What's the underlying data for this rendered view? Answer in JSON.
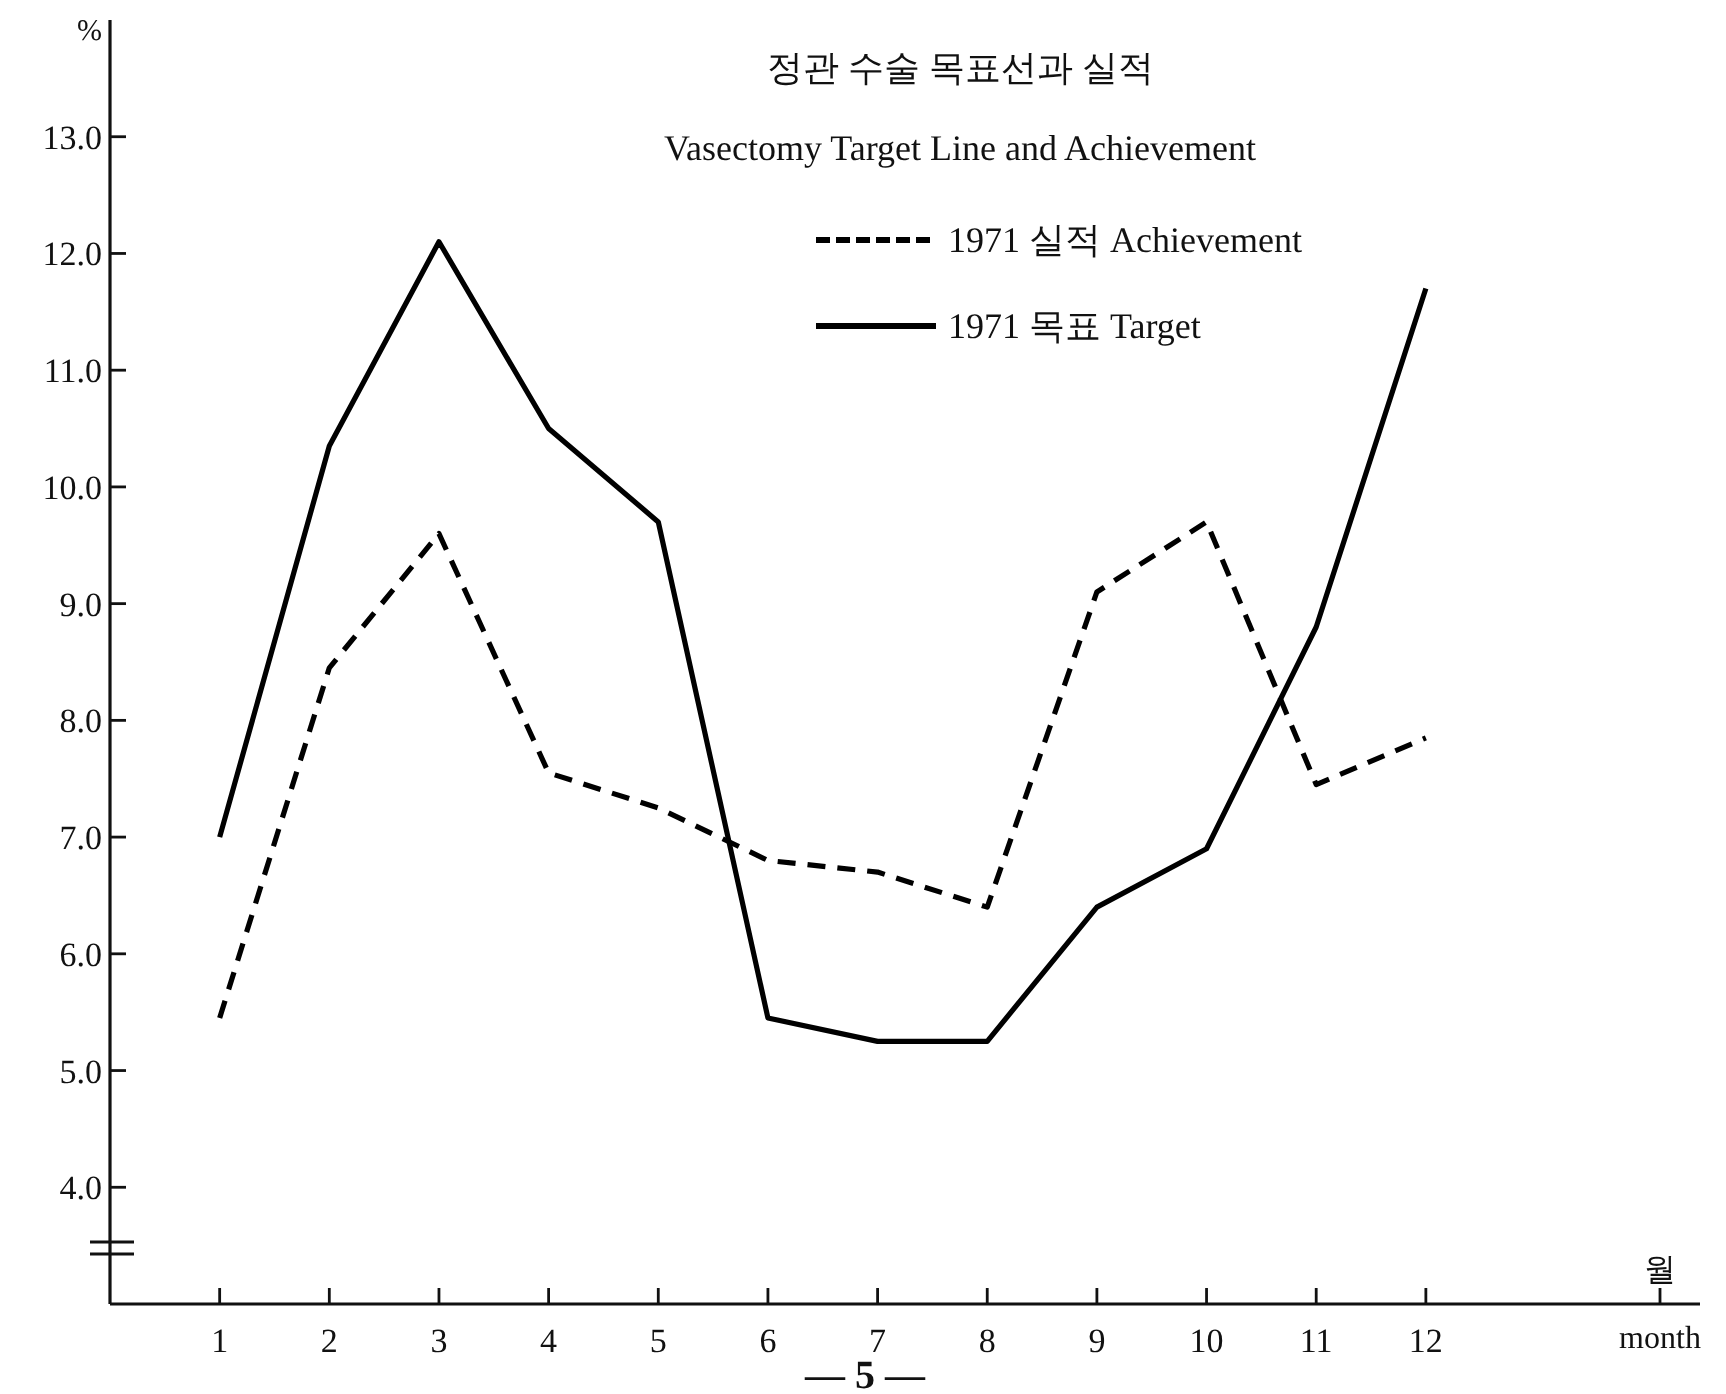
{
  "chart_data": {
    "type": "line",
    "title": "정관 수술 목표선과 실적",
    "subtitle": "Vasectomy Target Line and Achievement",
    "ylabel": "%",
    "xlabel": "월\nmonth",
    "x": [
      1,
      2,
      3,
      4,
      5,
      6,
      7,
      8,
      9,
      10,
      11,
      12
    ],
    "xlim": [
      0,
      14.5
    ],
    "xticks": [
      1,
      2,
      3,
      4,
      5,
      6,
      7,
      8,
      9,
      10,
      11,
      12
    ],
    "ylim": [
      3.0,
      14.0
    ],
    "yticks": [
      {
        "value": 4,
        "label": "4.0"
      },
      {
        "value": 5,
        "label": "5.0"
      },
      {
        "value": 6,
        "label": "6.0"
      },
      {
        "value": 7,
        "label": "7.0"
      },
      {
        "value": 8,
        "label": "8.0"
      },
      {
        "value": 9,
        "label": "9.0"
      },
      {
        "value": 10,
        "label": "10.0"
      },
      {
        "value": 11,
        "label": "11.0"
      },
      {
        "value": 12,
        "label": "12.0"
      },
      {
        "value": 13,
        "label": "13.0"
      }
    ],
    "series": [
      {
        "name": "1971 실적 Achievement",
        "color": "#000000",
        "line_style": "dashed",
        "values": [
          5.45,
          8.45,
          9.6,
          7.55,
          7.25,
          6.8,
          6.7,
          6.4,
          9.1,
          9.7,
          7.45,
          7.85
        ]
      },
      {
        "name": "1971 목표 Target",
        "color": "#000000",
        "line_style": "solid",
        "values": [
          7.0,
          10.35,
          12.1,
          10.5,
          9.7,
          5.45,
          5.25,
          5.25,
          6.4,
          6.9,
          8.8,
          11.7
        ]
      }
    ],
    "legend": "top right",
    "grid": false,
    "annotations": [
      "— 5 —"
    ]
  }
}
